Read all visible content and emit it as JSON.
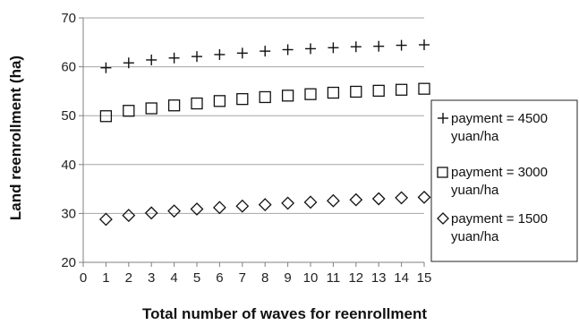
{
  "chart_data": {
    "type": "scatter",
    "xlabel": "Total number of waves for reenrollment",
    "ylabel": "Land reenrollment (ha)",
    "xlim": [
      0,
      15
    ],
    "ylim": [
      20,
      70
    ],
    "x_ticks": [
      0,
      1,
      2,
      3,
      4,
      5,
      6,
      7,
      8,
      9,
      10,
      11,
      12,
      13,
      14,
      15
    ],
    "y_ticks": [
      20,
      30,
      40,
      50,
      60,
      70
    ],
    "grid": "horizontal",
    "legend_position": "right",
    "x": [
      1,
      2,
      3,
      4,
      5,
      6,
      7,
      8,
      9,
      10,
      11,
      12,
      13,
      14,
      15
    ],
    "series": [
      {
        "name": "payment = 4500 yuan/ha",
        "marker": "plus",
        "values": [
          59.8,
          60.8,
          61.4,
          61.8,
          62.1,
          62.5,
          62.8,
          63.2,
          63.5,
          63.7,
          63.9,
          64.1,
          64.2,
          64.4,
          64.5
        ]
      },
      {
        "name": "payment = 3000 yuan/ha",
        "marker": "square",
        "values": [
          49.9,
          51.0,
          51.5,
          52.1,
          52.5,
          53.0,
          53.4,
          53.8,
          54.1,
          54.4,
          54.7,
          54.9,
          55.1,
          55.3,
          55.5
        ]
      },
      {
        "name": "payment = 1500 yuan/ha",
        "marker": "diamond",
        "values": [
          28.8,
          29.6,
          30.1,
          30.5,
          30.9,
          31.2,
          31.5,
          31.8,
          32.1,
          32.3,
          32.6,
          32.8,
          33.0,
          33.2,
          33.3
        ]
      }
    ],
    "legend": [
      {
        "line1": "payment = 4500",
        "line2": "yuan/ha"
      },
      {
        "line1": "payment = 3000",
        "line2": "yuan/ha"
      },
      {
        "line1": "payment = 1500",
        "line2": "yuan/ha"
      }
    ],
    "colors": {
      "marker": "#111111",
      "grid": "#a6a6a6",
      "axis": "#7f7f7f"
    }
  }
}
